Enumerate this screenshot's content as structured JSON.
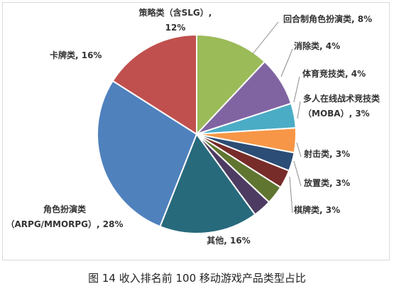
{
  "caption": "图 14 收入排名前 100 移动游戏产品类型占比",
  "chart_data": {
    "type": "pie",
    "title": "",
    "legend": "none",
    "slices": [
      {
        "name": "策略类（含SLG）",
        "value": 12,
        "label_lines": [
          "策略类（含SLG）,",
          "12%"
        ],
        "color": "#9bbb59"
      },
      {
        "name": "回合制角色扮演类",
        "value": 8,
        "label_lines": [
          "回合制角色扮演类, 8%"
        ],
        "color": "#8064a2"
      },
      {
        "name": "消除类",
        "value": 4,
        "label_lines": [
          "消除类, 4%"
        ],
        "color": "#4bacc6"
      },
      {
        "name": "体育竞技类",
        "value": 4,
        "label_lines": [
          "体育竞技类, 4%"
        ],
        "color": "#f79646"
      },
      {
        "name": "多人在线战术竞技类（MOBA）",
        "value": 3,
        "label_lines": [
          "多人在线战术竞技类",
          "（MOBA）, 3%"
        ],
        "color": "#2c4d75"
      },
      {
        "name": "射击类",
        "value": 3,
        "label_lines": [
          "射击类, 3%"
        ],
        "color": "#772c2a"
      },
      {
        "name": "放置类",
        "value": 3,
        "label_lines": [
          "放置类, 3%"
        ],
        "color": "#5f7530"
      },
      {
        "name": "棋牌类",
        "value": 3,
        "label_lines": [
          "棋牌类, 3%"
        ],
        "color": "#4d3b62"
      },
      {
        "name": "其他",
        "value": 16,
        "label_lines": [
          "其他, 16%"
        ],
        "color": "#276a7c"
      },
      {
        "name": "角色扮演类（ARPG/MMORPG）",
        "value": 28,
        "label_lines": [
          "角色扮演类",
          "（ARPG/MMORPG）, 28%"
        ],
        "color": "#4f81bd"
      },
      {
        "name": "卡牌类",
        "value": 16,
        "label_lines": [
          "卡牌类, 16%"
        ],
        "color": "#c0504d"
      }
    ]
  }
}
